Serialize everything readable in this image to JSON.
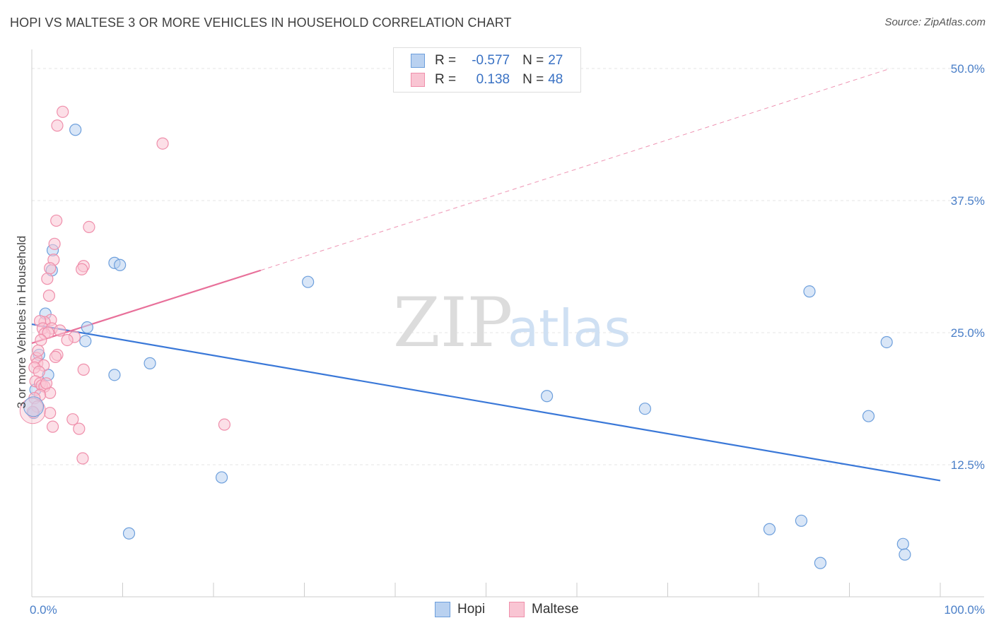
{
  "title": "HOPI VS MALTESE 3 OR MORE VEHICLES IN HOUSEHOLD CORRELATION CHART",
  "source": "Source: ZipAtlas.com",
  "legend": {
    "rows": [
      {
        "series": "Hopi",
        "r_label": "R =",
        "r_value": "-0.577",
        "n_label": "N =",
        "n_value": "27",
        "fill": "#b9d1f0",
        "stroke": "#6d9fdc"
      },
      {
        "series": "Maltese",
        "r_label": "R =",
        "r_value": "0.138",
        "n_label": "N =",
        "n_value": "48",
        "fill": "#f9c5d3",
        "stroke": "#ef8fab"
      }
    ],
    "bottom": [
      "Hopi",
      "Maltese"
    ]
  },
  "chart_data": {
    "type": "scatter",
    "title": "HOPI VS MALTESE 3 OR MORE VEHICLES IN HOUSEHOLD CORRELATION CHART",
    "xlabel": "",
    "ylabel": "3 or more Vehicles in Household",
    "xlim": [
      0,
      100
    ],
    "ylim": [
      0,
      52
    ],
    "x_tick_labels": [
      "0.0%",
      "100.0%"
    ],
    "y_ticks": [
      12.5,
      25.0,
      37.5,
      50.0
    ],
    "y_tick_labels": [
      "12.5%",
      "25.0%",
      "37.5%",
      "50.0%"
    ],
    "grid": true,
    "watermark": "ZIPatlas",
    "series": [
      {
        "name": "Hopi",
        "color": "#3a78d8",
        "fill": "#b9d1f0",
        "stroke": "#6d9fdc",
        "points": [
          [
            4.8,
            44.2
          ],
          [
            0.8,
            22.9
          ],
          [
            2.3,
            32.8
          ],
          [
            1.5,
            26.8
          ],
          [
            1.8,
            21.0
          ],
          [
            0.4,
            19.6
          ],
          [
            0.2,
            17.4
          ],
          [
            2.2,
            30.9
          ],
          [
            9.1,
            31.6
          ],
          [
            9.7,
            31.4
          ],
          [
            6.1,
            25.5
          ],
          [
            5.9,
            24.2
          ],
          [
            9.1,
            21.0
          ],
          [
            13.0,
            22.1
          ],
          [
            10.7,
            6.0
          ],
          [
            20.9,
            11.3
          ],
          [
            30.4,
            29.8
          ],
          [
            56.7,
            19.0
          ],
          [
            67.5,
            17.8
          ],
          [
            85.6,
            28.9
          ],
          [
            94.1,
            24.1
          ],
          [
            92.1,
            17.1
          ],
          [
            84.7,
            7.2
          ],
          [
            81.2,
            6.4
          ],
          [
            86.8,
            3.2
          ],
          [
            95.9,
            5.0
          ],
          [
            96.1,
            4.0
          ]
        ],
        "trend": {
          "x": [
            0,
            100
          ],
          "y": [
            25.8,
            11.0
          ],
          "style": "solid"
        }
      },
      {
        "name": "Maltese",
        "color": "#e8709a",
        "fill": "#f9c5d3",
        "stroke": "#ef8fab",
        "points": [
          [
            3.4,
            45.9
          ],
          [
            2.8,
            44.6
          ],
          [
            14.4,
            42.9
          ],
          [
            2.7,
            35.6
          ],
          [
            6.3,
            35.0
          ],
          [
            2.5,
            33.4
          ],
          [
            2.4,
            31.9
          ],
          [
            5.7,
            31.3
          ],
          [
            5.5,
            31.0
          ],
          [
            2.0,
            31.1
          ],
          [
            1.7,
            30.1
          ],
          [
            1.9,
            28.5
          ],
          [
            2.1,
            26.2
          ],
          [
            1.4,
            26.0
          ],
          [
            0.9,
            26.1
          ],
          [
            1.2,
            25.4
          ],
          [
            2.2,
            25.4
          ],
          [
            1.4,
            24.9
          ],
          [
            1.8,
            25.0
          ],
          [
            4.7,
            24.6
          ],
          [
            3.9,
            24.3
          ],
          [
            1.0,
            24.3
          ],
          [
            2.8,
            22.9
          ],
          [
            2.6,
            22.7
          ],
          [
            0.5,
            22.6
          ],
          [
            0.6,
            22.1
          ],
          [
            1.3,
            21.9
          ],
          [
            0.3,
            21.7
          ],
          [
            5.7,
            21.5
          ],
          [
            0.8,
            21.3
          ],
          [
            0.4,
            20.4
          ],
          [
            0.9,
            20.2
          ],
          [
            1.1,
            20.0
          ],
          [
            1.4,
            19.9
          ],
          [
            2.0,
            19.3
          ],
          [
            0.9,
            19.1
          ],
          [
            0.3,
            18.8
          ],
          [
            0.6,
            18.0
          ],
          [
            2.0,
            17.4
          ],
          [
            4.5,
            16.8
          ],
          [
            2.3,
            16.1
          ],
          [
            5.2,
            15.9
          ],
          [
            21.2,
            16.3
          ],
          [
            5.6,
            13.1
          ],
          [
            0.1,
            17.5
          ],
          [
            1.6,
            20.2
          ],
          [
            0.7,
            23.3
          ],
          [
            3.1,
            25.2
          ]
        ],
        "trend": {
          "x": [
            0,
            25.2
          ],
          "y": [
            24.0,
            30.9
          ],
          "style": "solid",
          "extension": {
            "x": [
              25.2,
              94.5
            ],
            "y": [
              30.9,
              50.0
            ],
            "style": "dashed"
          }
        }
      }
    ]
  }
}
